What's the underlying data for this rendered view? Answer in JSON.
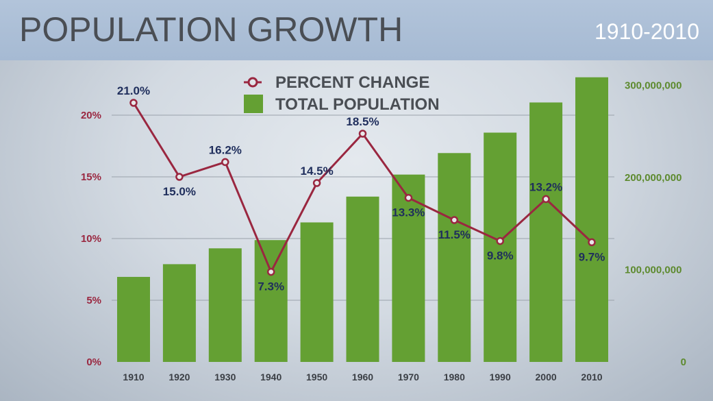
{
  "header": {
    "title": "POPULATION GROWTH",
    "range": "1910-2010"
  },
  "chart_data": {
    "type": "bar+line",
    "title": "POPULATION GROWTH",
    "subtitle": "1910-2010",
    "categories": [
      "1910",
      "1920",
      "1930",
      "1940",
      "1950",
      "1960",
      "1970",
      "1980",
      "1990",
      "2000",
      "2010"
    ],
    "series": [
      {
        "name": "TOTAL POPULATION",
        "type": "bar",
        "axis": "right",
        "color": "#64a033",
        "values": [
          92228496,
          106021537,
          123202624,
          132164569,
          151325798,
          179323175,
          203211926,
          226545805,
          248709873,
          281421906,
          308745538
        ]
      },
      {
        "name": "PERCENT CHANGE",
        "type": "line",
        "axis": "left",
        "color": "#9a2740",
        "values": [
          21.0,
          15.0,
          16.2,
          7.3,
          14.5,
          18.5,
          13.3,
          11.5,
          9.8,
          13.2,
          9.7
        ],
        "labels": [
          "21.0%",
          "15.0%",
          "16.2%",
          "7.3%",
          "14.5%",
          "18.5%",
          "13.3%",
          "11.5%",
          "9.8%",
          "13.2%",
          "9.7%"
        ]
      }
    ],
    "left_axis": {
      "range": [
        0,
        20
      ],
      "ticks": [
        "0%",
        "5%",
        "10%",
        "15%",
        "20%"
      ],
      "color": "#9a2740"
    },
    "right_axis": {
      "range": [
        0,
        300000000
      ],
      "ticks": [
        "0",
        "100,000,000",
        "200,000,000",
        "300,000,000"
      ],
      "color": "#5d8a2e"
    },
    "legend": {
      "placement": "top-center",
      "items": [
        "PERCENT CHANGE",
        "TOTAL POPULATION"
      ]
    },
    "grid": true
  }
}
